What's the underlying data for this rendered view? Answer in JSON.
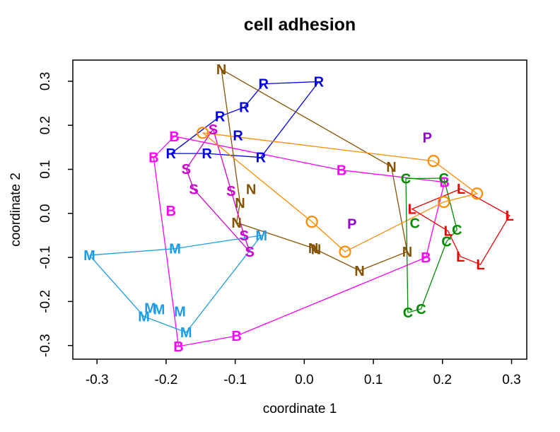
{
  "title": "cell adhesion",
  "chart_data": {
    "type": "scatter",
    "title": "cell adhesion",
    "xlabel": "coordinate 1",
    "ylabel": "coordinate 2",
    "xlim": [
      -0.335,
      0.322
    ],
    "ylim": [
      -0.331,
      0.348
    ],
    "xticks": [
      -0.3,
      -0.2,
      -0.1,
      0.0,
      0.1,
      0.2,
      0.3
    ],
    "yticks": [
      -0.3,
      -0.2,
      -0.1,
      0.0,
      0.1,
      0.2,
      0.3
    ],
    "xtick_labels": [
      "-0.3",
      "-0.2",
      "-0.1",
      "0.0",
      "0.1",
      "0.2",
      "0.3"
    ],
    "ytick_labels": [
      "-0.3",
      "-0.2",
      "-0.1",
      "0.0",
      "0.1",
      "0.2",
      "0.3"
    ],
    "grid": false,
    "legend": "none",
    "axis_color": "#000000",
    "series": [
      {
        "name": "R",
        "label": "R",
        "marker": "letter",
        "color": "#0000EE",
        "points": [
          [
            0.021,
            0.299
          ],
          [
            -0.059,
            0.294
          ],
          [
            -0.087,
            0.241
          ],
          [
            -0.122,
            0.22
          ],
          [
            -0.096,
            0.177
          ],
          [
            -0.193,
            0.136
          ],
          [
            -0.141,
            0.136
          ],
          [
            -0.063,
            0.127
          ]
        ],
        "path": [
          5,
          3,
          2,
          1,
          0,
          7,
          6,
          5
        ]
      },
      {
        "name": "N",
        "label": "N",
        "marker": "letter",
        "color": "#855200",
        "points": [
          [
            -0.12,
            0.327
          ],
          [
            0.126,
            0.106
          ],
          [
            -0.077,
            0.055
          ],
          [
            -0.093,
            0.024
          ],
          [
            -0.098,
            -0.021
          ],
          [
            0.013,
            -0.079
          ],
          [
            0.017,
            -0.081
          ],
          [
            0.08,
            -0.13
          ],
          [
            0.149,
            -0.087
          ]
        ],
        "path": [
          0,
          1,
          8,
          7,
          5,
          4,
          3,
          0
        ]
      },
      {
        "name": "B",
        "label": "B",
        "marker": "letter",
        "color": "#FF00FF",
        "points": [
          [
            -0.188,
            0.175
          ],
          [
            -0.218,
            0.127
          ],
          [
            0.054,
            0.098
          ],
          [
            0.203,
            0.071
          ],
          [
            -0.193,
            0.006
          ],
          [
            0.176,
            -0.1
          ],
          [
            -0.098,
            -0.278
          ],
          [
            -0.182,
            -0.302
          ]
        ],
        "path": [
          0,
          2,
          3,
          5,
          6,
          7,
          1,
          0
        ]
      },
      {
        "name": "S",
        "label": "S",
        "marker": "letter",
        "color": "#CC00CC",
        "points": [
          [
            -0.132,
            0.191
          ],
          [
            -0.171,
            0.101
          ],
          [
            -0.16,
            0.055
          ],
          [
            -0.106,
            0.051
          ],
          [
            -0.087,
            -0.05
          ],
          [
            -0.079,
            -0.087
          ]
        ],
        "path": [
          0,
          4,
          5,
          2,
          1,
          0
        ]
      },
      {
        "name": "M",
        "label": "M",
        "marker": "letter",
        "color": "#1C9BE8",
        "points": [
          [
            -0.311,
            -0.095
          ],
          [
            -0.187,
            -0.08
          ],
          [
            -0.062,
            -0.05
          ],
          [
            -0.232,
            -0.234
          ],
          [
            -0.223,
            -0.215
          ],
          [
            -0.21,
            -0.218
          ],
          [
            -0.18,
            -0.223
          ],
          [
            -0.171,
            -0.27
          ]
        ],
        "path": [
          0,
          1,
          2,
          7,
          3,
          0
        ]
      },
      {
        "name": "O",
        "label": "O",
        "marker": "circle",
        "color": "#FF8C00",
        "points": [
          [
            -0.147,
            0.183
          ],
          [
            0.187,
            0.119
          ],
          [
            0.25,
            0.045
          ],
          [
            0.202,
            0.026
          ],
          [
            0.059,
            -0.087
          ],
          [
            0.011,
            -0.019
          ]
        ],
        "path": [
          0,
          1,
          2,
          3,
          4,
          5,
          0
        ]
      },
      {
        "name": "C",
        "label": "C",
        "marker": "letter",
        "color": "#008B00",
        "points": [
          [
            0.147,
            0.079
          ],
          [
            0.202,
            0.08
          ],
          [
            0.16,
            -0.022
          ],
          [
            0.221,
            -0.037
          ],
          [
            0.206,
            -0.064
          ],
          [
            0.169,
            -0.217
          ],
          [
            0.15,
            -0.225
          ]
        ],
        "path": [
          6,
          0,
          1,
          3,
          4,
          5,
          6
        ]
      },
      {
        "name": "L",
        "label": "L",
        "marker": "letter",
        "color": "#EE0000",
        "points": [
          [
            0.227,
            0.056
          ],
          [
            0.156,
            0.01
          ],
          [
            0.208,
            -0.04
          ],
          [
            0.226,
            -0.098
          ],
          [
            0.255,
            -0.116
          ],
          [
            0.297,
            -0.005
          ]
        ],
        "path": [
          0,
          1,
          2,
          3,
          4,
          5,
          0
        ]
      },
      {
        "name": "P",
        "label": "P",
        "marker": "letter",
        "color": "#9400D3",
        "points": [
          [
            0.178,
            0.172
          ],
          [
            0.069,
            -0.024
          ]
        ],
        "path": []
      }
    ]
  }
}
